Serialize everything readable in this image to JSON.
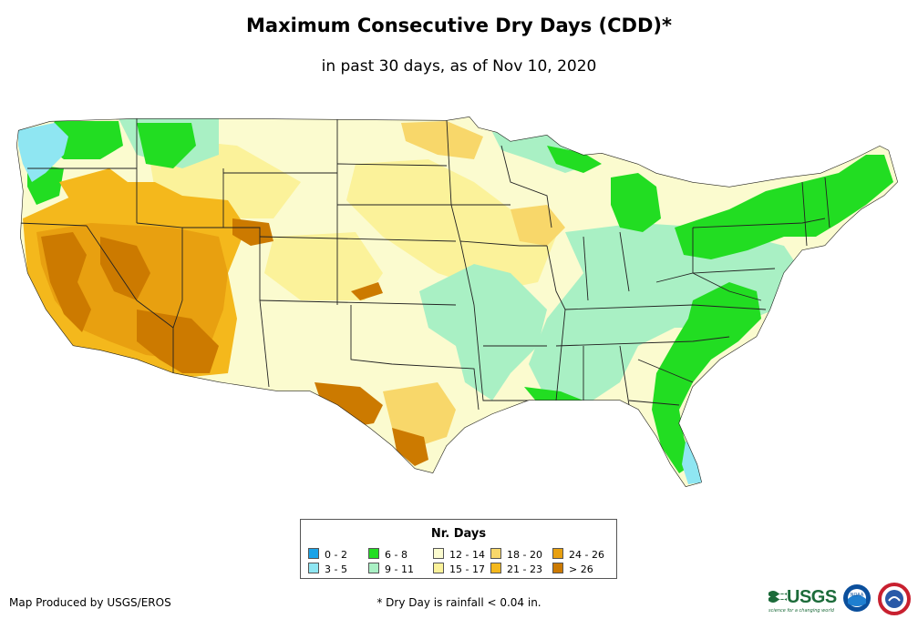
{
  "title": "Maximum Consecutive Dry Days (CDD)*",
  "subtitle": "in past 30 days, as of Nov 10, 2020",
  "legend": {
    "title": "Nr. Days",
    "items": [
      {
        "label": "0 - 2",
        "color": "#1aa3e8"
      },
      {
        "label": "3 - 5",
        "color": "#8fe6f2"
      },
      {
        "label": "6 - 8",
        "color": "#22dd22"
      },
      {
        "label": "9 - 11",
        "color": "#a9f0c4"
      },
      {
        "label": "12 - 14",
        "color": "#fbfbcf"
      },
      {
        "label": "15 - 17",
        "color": "#fbf29a"
      },
      {
        "label": "18 - 20",
        "color": "#f8d76a"
      },
      {
        "label": "21 - 23",
        "color": "#f4b81c"
      },
      {
        "label": "24 - 26",
        "color": "#e8a010"
      },
      {
        "label": "> 26",
        "color": "#cc7a00"
      }
    ]
  },
  "credit": "Map Produced by USGS/EROS",
  "footnote": "* Dry Day is rainfall < 0.04 in.",
  "logos": {
    "usgs": "USGS",
    "usgs_tagline": "science for a changing world",
    "noaa": "NOAA"
  }
}
